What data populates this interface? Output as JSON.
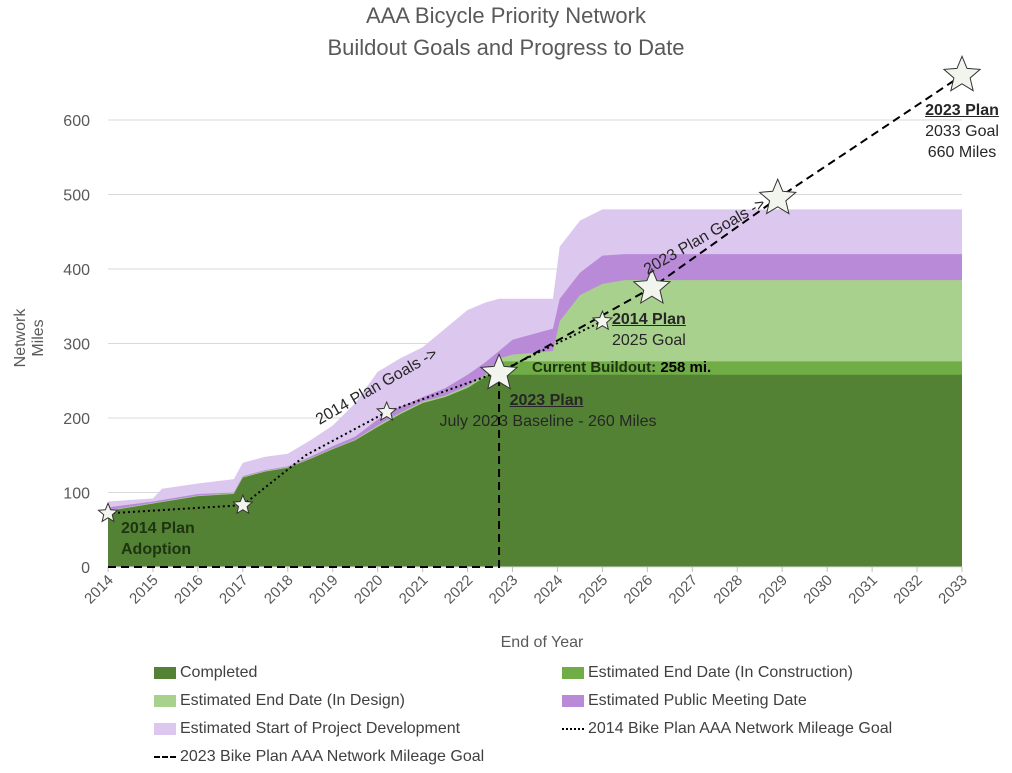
{
  "chart_data": {
    "type": "area",
    "title": "AAA Bicycle Priority Network",
    "subtitle": "Buildout Goals and Progress to Date",
    "xlabel": "End of Year",
    "ylabel": "Network Miles",
    "xlim": [
      2014,
      2033
    ],
    "ylim": [
      0,
      650
    ],
    "yticks": [
      0,
      100,
      200,
      300,
      400,
      500,
      600
    ],
    "xticks": [
      2014,
      2015,
      2016,
      2017,
      2018,
      2019,
      2020,
      2021,
      2022,
      2023,
      2024,
      2025,
      2026,
      2027,
      2028,
      2029,
      2030,
      2031,
      2032,
      2033
    ],
    "grid": true,
    "legend_position": "bottom",
    "colors": {
      "completed": "#548235",
      "construction": "#70ad47",
      "design": "#a9d18e",
      "meeting": "#b88ad8",
      "start": "#dcc7ee",
      "line": "#000000"
    },
    "x": [
      2014,
      2015,
      2015.2,
      2016,
      2016.8,
      2017,
      2017.5,
      2018,
      2018.5,
      2019,
      2019.5,
      2020,
      2020.5,
      2021,
      2021.5,
      2022,
      2022.4,
      2022.7,
      2023,
      2023.9,
      2024.05,
      2024.5,
      2025,
      2025.5,
      2033
    ],
    "series": [
      {
        "name": "Completed",
        "key": "completed",
        "values": [
          75,
          85,
          87,
          95,
          98,
          120,
          128,
          133,
          145,
          158,
          170,
          188,
          205,
          220,
          228,
          240,
          255,
          258,
          258,
          258,
          258,
          258,
          258,
          258,
          258
        ]
      },
      {
        "name": "Estimated End Date (In Construction)",
        "key": "construction",
        "values": [
          75,
          85,
          87,
          95,
          98,
          120,
          128,
          133,
          145,
          158,
          170,
          188,
          205,
          220,
          228,
          241,
          256,
          276,
          276,
          276,
          276,
          276,
          276,
          276,
          276
        ]
      },
      {
        "name": "Estimated End Date (In Design)",
        "key": "design",
        "values": [
          76,
          86,
          88,
          96,
          99,
          121,
          129,
          134,
          146,
          159,
          171,
          190,
          207,
          222,
          230,
          243,
          258,
          280,
          285,
          290,
          330,
          365,
          380,
          385,
          385
        ]
      },
      {
        "name": "Estimated Public Meeting Date",
        "key": "meeting",
        "values": [
          80,
          88,
          90,
          98,
          100,
          122,
          130,
          135,
          148,
          162,
          175,
          198,
          215,
          228,
          240,
          258,
          275,
          290,
          305,
          320,
          360,
          395,
          418,
          420,
          420
        ]
      },
      {
        "name": "Estimated Start of Project Development",
        "key": "start",
        "values": [
          88,
          92,
          105,
          112,
          118,
          140,
          148,
          152,
          170,
          190,
          220,
          262,
          280,
          295,
          320,
          345,
          355,
          360,
          360,
          360,
          430,
          465,
          480,
          480,
          480
        ]
      }
    ],
    "lines": [
      {
        "name": "2014 Bike Plan AAA Network Mileage Goal",
        "style": "dotted",
        "points": [
          [
            2014,
            72
          ],
          [
            2017,
            83
          ],
          [
            2018.4,
            150
          ],
          [
            2020.2,
            208
          ],
          [
            2022.7,
            262
          ],
          [
            2025,
            330
          ]
        ],
        "stars": [
          [
            2014,
            72
          ],
          [
            2017,
            83
          ],
          [
            2020.2,
            208
          ],
          [
            2025,
            330
          ]
        ]
      },
      {
        "name": "2023 Bike Plan AAA Network Mileage Goal",
        "style": "dashed",
        "points": [
          [
            2014,
            0
          ],
          [
            2022.7,
            0
          ],
          [
            2022.7,
            260
          ],
          [
            2026.1,
            375
          ],
          [
            2028.9,
            495
          ],
          [
            2033,
            660
          ]
        ],
        "stars": [
          [
            2022.7,
            260
          ],
          [
            2026.1,
            375
          ],
          [
            2028.9,
            495
          ],
          [
            2033,
            660
          ]
        ]
      }
    ],
    "annotations": {
      "adoption_1": "2014 Plan",
      "adoption_2": "Adoption",
      "goals2014": "2014 Plan Goals ->",
      "goals2023": "2023 Plan Goals ->",
      "baseline_head": "2023 Plan",
      "baseline_text": "July 2023 Baseline - 260 Miles",
      "current_label": "Current Buildout:",
      "current_value": "258 mi.",
      "goal2025_head": "2014 Plan",
      "goal2025_text": "2025 Goal",
      "goal2033_head": "2023 Plan",
      "goal2033_text": "2033 Goal",
      "goal2033_miles": "660 Miles"
    }
  }
}
